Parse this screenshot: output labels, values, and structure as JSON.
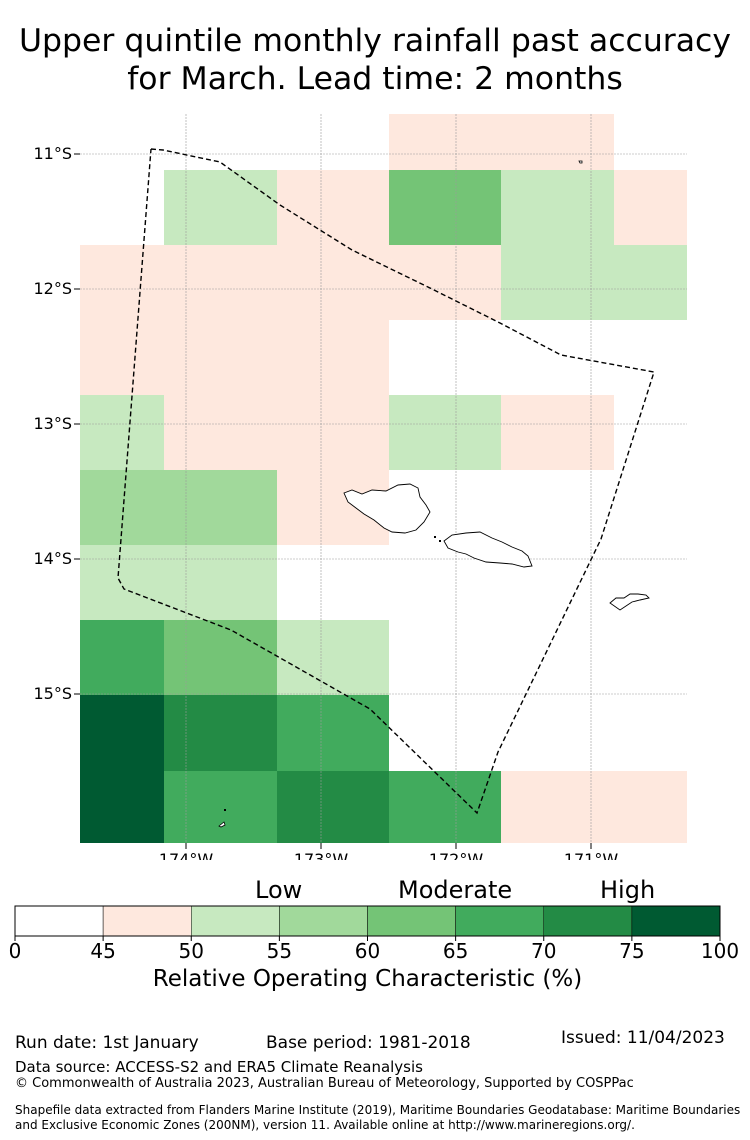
{
  "title": {
    "line1": "Upper quintile monthly rainfall past accuracy",
    "line2": "for March. Lead time: 2 months"
  },
  "map": {
    "lat_labels": [
      "11°S",
      "12°S",
      "13°S",
      "14°S",
      "15°S"
    ],
    "lon_labels": [
      "174°W",
      "173°W",
      "172°W",
      "171°W"
    ],
    "colors": {
      "c45_50": "#fee8de",
      "c50_55": "#c7e9c0",
      "c55_60": "#a1d99b",
      "c60_65": "#74c476",
      "c65_70": "#41ab5d",
      "c70_75": "#238b45",
      "c75_100": "#005a32"
    }
  },
  "colorbar": {
    "categories": [
      "Low",
      "Moderate",
      "High"
    ],
    "ticks": [
      "0",
      "45",
      "50",
      "55",
      "60",
      "65",
      "70",
      "75",
      "100"
    ],
    "colors": [
      "#ffffff",
      "#fee8de",
      "#c7e9c0",
      "#a1d99b",
      "#74c476",
      "#41ab5d",
      "#238b45",
      "#005a32"
    ],
    "axis_label": "Relative Operating Characteristic (%)"
  },
  "footer": {
    "run_date": "Run date: 1st January",
    "base_period": "Base period: 1981-2018",
    "issued": "Issued: 11/04/2023",
    "data_source": "Data source: ACCESS-S2 and ERA5 Climate Reanalysis",
    "copyright": "© Commonwealth of Australia 2023, Australian Bureau of Meteorology, Supported by COSPPac",
    "shapefile_line1": "Shapefile data extracted from Flanders Marine Institute (2019), Maritime Boundaries Geodatabase: Maritime Boundaries",
    "shapefile_line2": "and Exclusive Economic Zones (200NM), version 11. Available online at http://www.marineregions.org/."
  }
}
